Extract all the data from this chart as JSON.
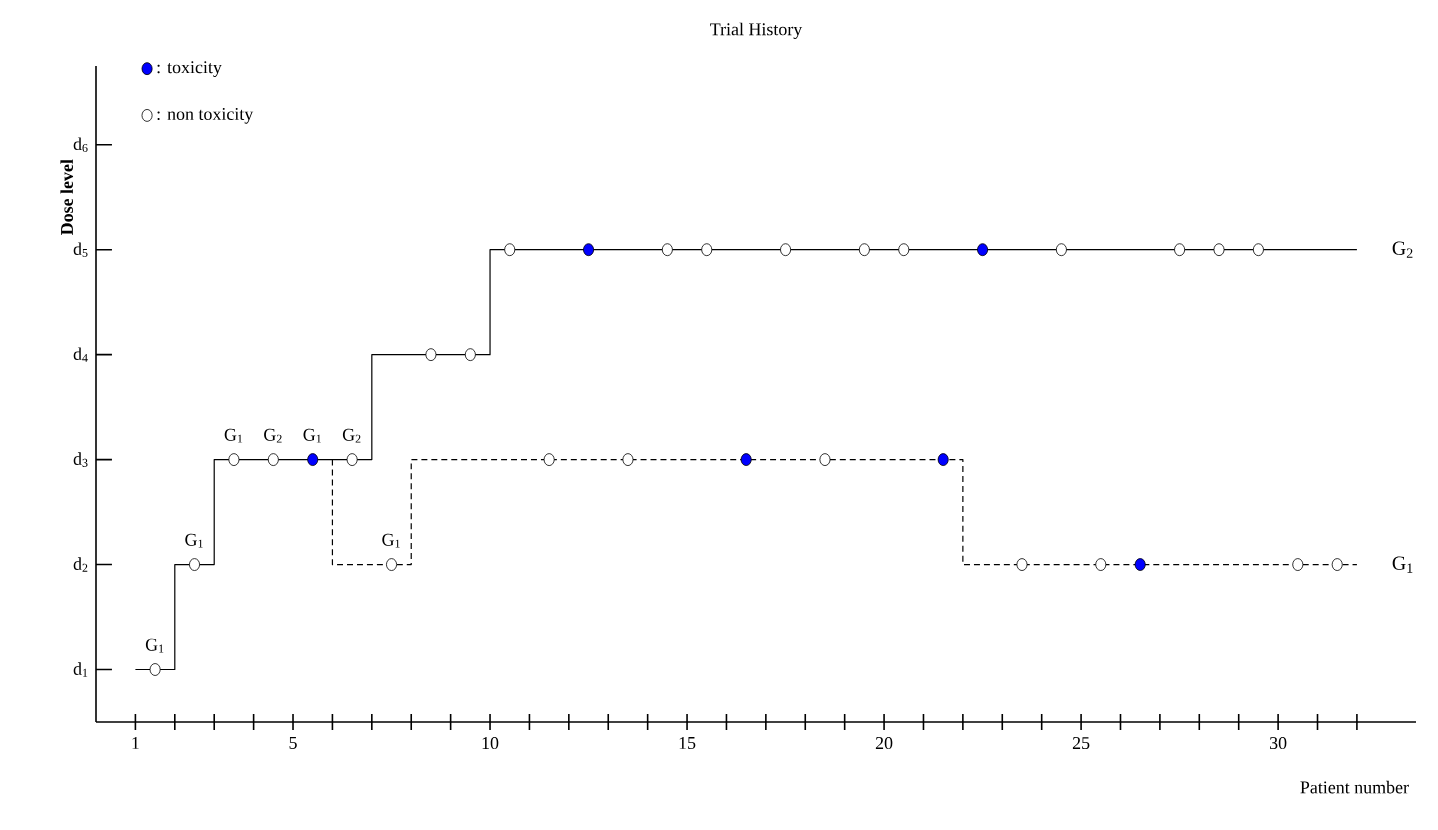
{
  "chart_data": {
    "type": "step",
    "title": "Trial History",
    "xlabel": "Patient number",
    "ylabel": "Dose level",
    "xlim": [
      0,
      33.5
    ],
    "ylim": [
      0.5,
      6.75
    ],
    "xticks": [
      1,
      {
        "value": 2,
        "label": null
      },
      {
        "value": 3,
        "label": null
      },
      {
        "value": 4,
        "label": null
      },
      5,
      {
        "value": 6,
        "label": null
      },
      {
        "value": 7,
        "label": null
      },
      {
        "value": 8,
        "label": null
      },
      {
        "value": 9,
        "label": null
      },
      10,
      {
        "value": 11,
        "label": null
      },
      {
        "value": 12,
        "label": null
      },
      {
        "value": 13,
        "label": null
      },
      {
        "value": 14,
        "label": null
      },
      15,
      {
        "value": 16,
        "label": null
      },
      {
        "value": 17,
        "label": null
      },
      {
        "value": 18,
        "label": null
      },
      {
        "value": 19,
        "label": null
      },
      20,
      {
        "value": 21,
        "label": null
      },
      {
        "value": 22,
        "label": null
      },
      {
        "value": 23,
        "label": null
      },
      {
        "value": 24,
        "label": null
      },
      25,
      {
        "value": 26,
        "label": null
      },
      {
        "value": 27,
        "label": null
      },
      {
        "value": 28,
        "label": null
      },
      {
        "value": 29,
        "label": null
      },
      30,
      {
        "value": 31,
        "label": null
      },
      {
        "value": 32,
        "label": null
      }
    ],
    "yticks": [
      {
        "value": 1,
        "label": "d$_{1}$"
      },
      {
        "value": 2,
        "label": "d$_{2}$"
      },
      {
        "value": 3,
        "label": "d$_{3}$"
      },
      {
        "value": 4,
        "label": "d$_{4}$"
      },
      {
        "value": 5,
        "label": "d$_{5}$"
      },
      {
        "value": 6,
        "label": "d$_{6}$"
      }
    ],
    "legend": "top left",
    "series": [
      {
        "name": "G$_{2}$",
        "color": "#000000",
        "line_style": "solid",
        "marker": "none",
        "x": [
          1,
          2,
          3,
          7,
          10,
          32
        ],
        "values": [
          1,
          2,
          3,
          4,
          5,
          5
        ]
      },
      {
        "name": "G$_{1}$",
        "color": "#000000",
        "line_style": "dashed",
        "marker": "none",
        "x": [
          6,
          6,
          8,
          22,
          32
        ],
        "values": [
          3,
          2,
          3,
          2,
          2
        ]
      },
      {
        "name": ": toxicity",
        "type": "scatter",
        "color": "#0000ff",
        "marker": "circle",
        "x": [
          5.5,
          12.5,
          16.5,
          21.5,
          22.5,
          26.5
        ],
        "values": [
          3,
          5,
          3,
          3,
          5,
          2
        ]
      },
      {
        "name": ": non toxicity",
        "type": "scatter",
        "color": "#ffffff",
        "marker": "circle",
        "x": [
          1.5,
          2.5,
          3.5,
          4.5,
          6.5,
          7.5,
          8.5,
          9.5,
          10.5,
          11.5,
          13.5,
          14.5,
          15.5,
          17.5,
          18.5,
          19.5,
          20.5,
          23.5,
          24.5,
          25.5,
          27.5,
          28.5,
          29.5,
          30.5,
          31.5
        ],
        "values": [
          1,
          2,
          3,
          3,
          3,
          2,
          4,
          4,
          5,
          3,
          3,
          5,
          5,
          5,
          3,
          5,
          5,
          2,
          5,
          2,
          5,
          5,
          5,
          2,
          2
        ]
      }
    ],
    "annotations": [
      {
        "text": "G$_{1}$",
        "x": 1.5,
        "y": 1
      },
      {
        "text": "G$_{1}$",
        "x": 2.5,
        "y": 2
      },
      {
        "text": "G$_{1}$",
        "x": 3.5,
        "y": 3
      },
      {
        "text": "G$_{2}$",
        "x": 4.5,
        "y": 3
      },
      {
        "text": "G$_{1}$",
        "x": 5.5,
        "y": 3
      },
      {
        "text": "G$_{2}$",
        "x": 6.5,
        "y": 3
      },
      {
        "text": "G$_{1}$",
        "x": 7.5,
        "y": 2
      }
    ]
  }
}
